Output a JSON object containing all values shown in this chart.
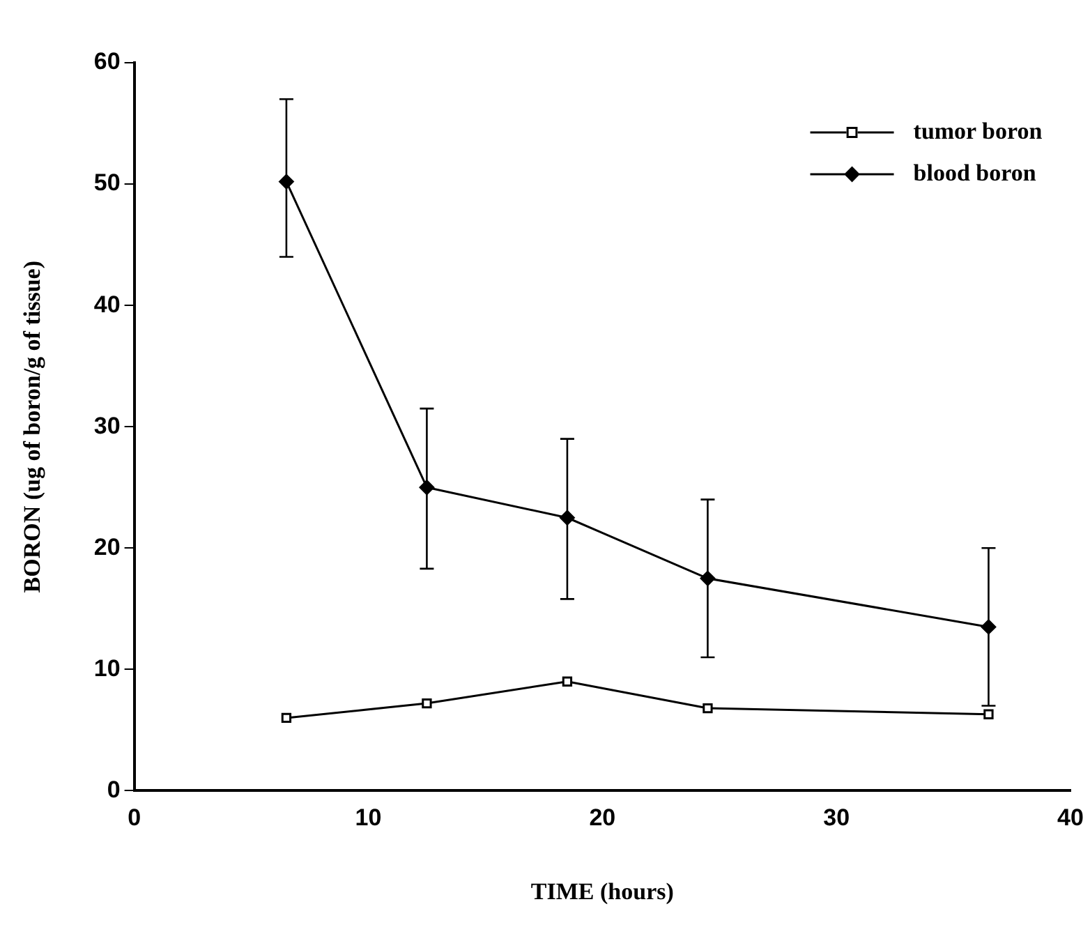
{
  "chart_data": {
    "type": "line",
    "xlabel": "TIME (hours)",
    "ylabel": "BORON (ug of boron/g of tissue)",
    "x": [
      6.5,
      12.5,
      18.5,
      24.5,
      36.5
    ],
    "series": [
      {
        "name": "tumor boron",
        "color": "#000000",
        "marker": "square",
        "values": [
          6,
          7.2,
          9,
          6.8,
          6.3
        ]
      },
      {
        "name": "blood boron",
        "color": "#000000",
        "marker": "diamond",
        "values": [
          50.2,
          25,
          22.5,
          17.5,
          13.5
        ],
        "errors": [
          [
            44,
            57
          ],
          [
            18.3,
            31.5
          ],
          [
            15.8,
            29
          ],
          [
            11,
            24
          ],
          [
            7,
            20
          ]
        ]
      }
    ],
    "xlim": [
      0,
      40
    ],
    "xticks": [
      0,
      10,
      20,
      30,
      40
    ],
    "ylim": [
      0,
      60
    ],
    "yticks": [
      0,
      10,
      20,
      30,
      40,
      50,
      60
    ],
    "grid": false,
    "legend": "top right",
    "line_style": "solid"
  }
}
